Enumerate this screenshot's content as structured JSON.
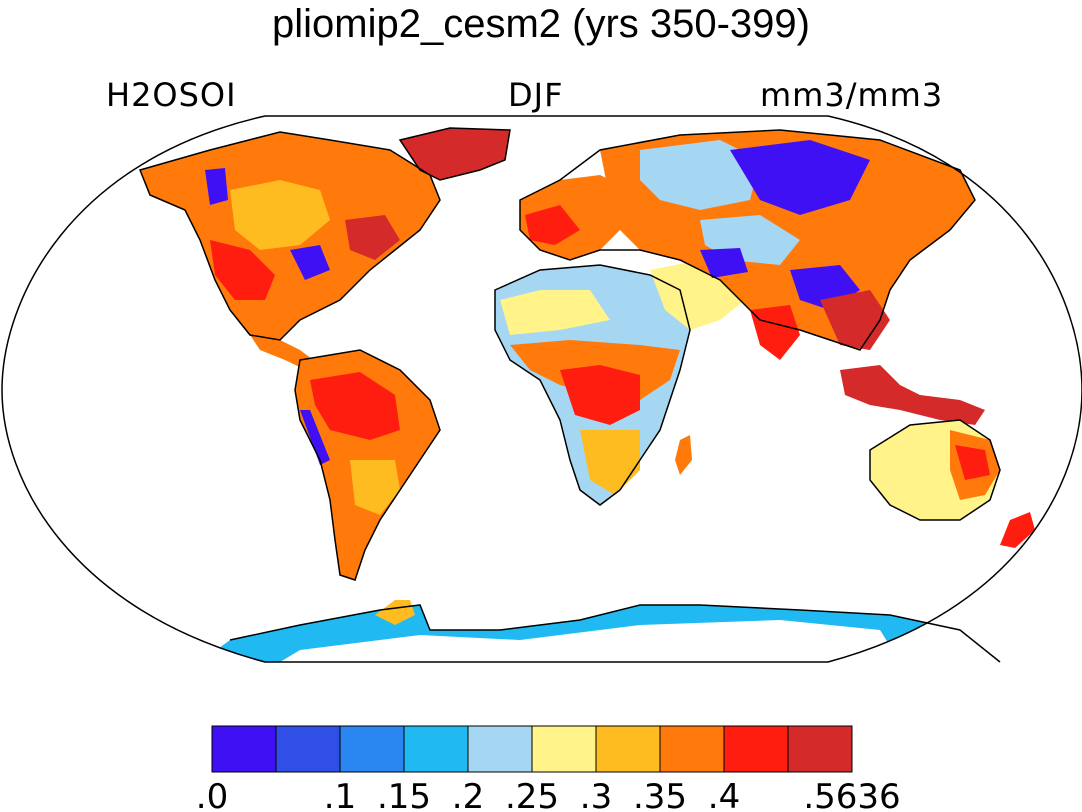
{
  "title": "pliomip2_cesm2 (yrs 350-399)",
  "left_label": "H2OSOI",
  "center_label": "DJF",
  "right_label": "mm3/mm3",
  "colorbar": {
    "colors": [
      "#3f10f4",
      "#2f4fe6",
      "#2a86f0",
      "#20b9f2",
      "#a5d6f2",
      "#fff38a",
      "#ffbc20",
      "#ff7a0a",
      "#ff1d10",
      "#d42a2a"
    ],
    "tick_labels": [
      ".0",
      ".1",
      ".15",
      ".2",
      ".25",
      ".3",
      ".35",
      ".4",
      ".5636"
    ]
  },
  "map": {
    "projection": "Robinson",
    "ocean_color": "#ffffff",
    "coastline_color": "#000000"
  }
}
